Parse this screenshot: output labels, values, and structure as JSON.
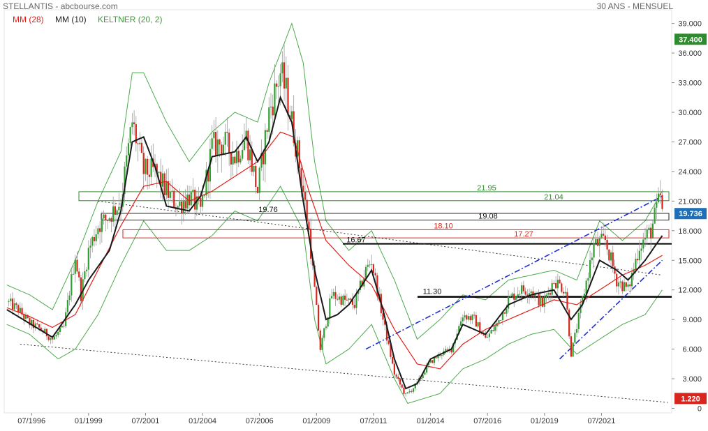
{
  "header": {
    "title": "STELLANTIS - abcbourse.com",
    "period": "30 ANS - MENSUEL"
  },
  "indicators": [
    {
      "label": "MM (28)",
      "color": "#e0201a"
    },
    {
      "label": "MM (10)",
      "color": "#222222"
    },
    {
      "label": "KELTNER (20, 2)",
      "color": "#3a9a3a"
    }
  ],
  "chart_data": {
    "type": "candlestick",
    "title": "STELLANTIS - abcbourse.com",
    "subtitle": "30 ANS - MENSUEL",
    "x_ticks": [
      "07/1996",
      "01/1999",
      "07/2001",
      "01/2004",
      "07/2006",
      "01/2009",
      "07/2011",
      "01/2014",
      "07/2016",
      "01/2019",
      "07/2021"
    ],
    "y_ticks": [
      "0",
      "3.000",
      "6.000",
      "9.000",
      "12.000",
      "15.000",
      "18.000",
      "21.000",
      "24.000",
      "27.000",
      "30.000",
      "33.000",
      "36.000",
      "39.000"
    ],
    "ylim": [
      0,
      41
    ],
    "price_label": {
      "value": "19.736",
      "color": "#1e6fb8"
    },
    "max_label": {
      "value": "37.400",
      "color": "#2e8b2e"
    },
    "min_label": {
      "value": "1.220",
      "color": "#d7261e"
    },
    "close_series": [
      [
        "1995-06",
        10.8
      ],
      [
        "1995-12",
        10.0
      ],
      [
        "1996-06",
        8.6
      ],
      [
        "1996-12",
        8.0
      ],
      [
        "1997-06",
        7.0
      ],
      [
        "1997-12",
        8.2
      ],
      [
        "1998-06",
        15.5
      ],
      [
        "1998-09",
        11.5
      ],
      [
        "1999-01",
        16.0
      ],
      [
        "1999-06",
        18.5
      ],
      [
        "1999-12",
        19.5
      ],
      [
        "2000-06",
        21.0
      ],
      [
        "2000-12",
        29.0
      ],
      [
        "2001-06",
        24.0
      ],
      [
        "2001-12",
        24.0
      ],
      [
        "2002-06",
        22.0
      ],
      [
        "2002-12",
        20.5
      ],
      [
        "2003-06",
        21.5
      ],
      [
        "2003-12",
        20.0
      ],
      [
        "2004-06",
        26.5
      ],
      [
        "2004-12",
        27.0
      ],
      [
        "2005-06",
        25.5
      ],
      [
        "2005-12",
        27.5
      ],
      [
        "2006-06",
        22.0
      ],
      [
        "2006-12",
        30.0
      ],
      [
        "2007-06",
        34.0
      ],
      [
        "2007-09",
        32.0
      ],
      [
        "2008-03",
        26.0
      ],
      [
        "2008-09",
        18.0
      ],
      [
        "2008-12",
        12.0
      ],
      [
        "2009-03",
        6.0
      ],
      [
        "2009-09",
        11.5
      ],
      [
        "2010-03",
        11.0
      ],
      [
        "2010-09",
        10.5
      ],
      [
        "2011-03",
        14.0
      ],
      [
        "2011-06",
        15.0
      ],
      [
        "2011-12",
        9.0
      ],
      [
        "2012-06",
        3.5
      ],
      [
        "2012-12",
        1.3
      ],
      [
        "2013-06",
        2.5
      ],
      [
        "2013-12",
        4.5
      ],
      [
        "2014-06",
        5.5
      ],
      [
        "2014-12",
        6.0
      ],
      [
        "2015-06",
        9.5
      ],
      [
        "2015-12",
        9.0
      ],
      [
        "2016-06",
        7.0
      ],
      [
        "2016-12",
        8.5
      ],
      [
        "2017-06",
        11.0
      ],
      [
        "2017-12",
        12.0
      ],
      [
        "2018-06",
        12.0
      ],
      [
        "2018-12",
        10.5
      ],
      [
        "2019-06",
        13.0
      ],
      [
        "2019-12",
        12.0
      ],
      [
        "2020-03",
        5.5
      ],
      [
        "2020-09",
        11.0
      ],
      [
        "2021-03",
        16.5
      ],
      [
        "2021-09",
        17.0
      ],
      [
        "2022-03",
        13.0
      ],
      [
        "2022-09",
        12.0
      ],
      [
        "2023-03",
        16.5
      ],
      [
        "2023-09",
        18.0
      ],
      [
        "2024-02",
        21.5
      ],
      [
        "2024-03",
        19.736
      ]
    ],
    "mm10_series": [
      [
        "1995-06",
        10.0
      ],
      [
        "1996-06",
        8.6
      ],
      [
        "1997-06",
        7.2
      ],
      [
        "1998-06",
        10.5
      ],
      [
        "1999-01",
        13.0
      ],
      [
        "1999-12",
        16.0
      ],
      [
        "2000-06",
        20.0
      ],
      [
        "2000-12",
        27.0
      ],
      [
        "2001-06",
        27.5
      ],
      [
        "2001-12",
        24.5
      ],
      [
        "2002-06",
        20.5
      ],
      [
        "2003-06",
        20.0
      ],
      [
        "2003-12",
        21.5
      ],
      [
        "2004-06",
        25.5
      ],
      [
        "2005-06",
        26.0
      ],
      [
        "2005-12",
        27.5
      ],
      [
        "2006-06",
        25.0
      ],
      [
        "2006-12",
        27.0
      ],
      [
        "2007-06",
        31.5
      ],
      [
        "2007-12",
        29.0
      ],
      [
        "2008-06",
        21.0
      ],
      [
        "2008-12",
        14.0
      ],
      [
        "2009-06",
        9.0
      ],
      [
        "2009-12",
        9.5
      ],
      [
        "2010-06",
        10.5
      ],
      [
        "2011-01",
        12.5
      ],
      [
        "2011-06",
        14.0
      ],
      [
        "2011-12",
        10.0
      ],
      [
        "2012-06",
        5.0
      ],
      [
        "2012-12",
        2.0
      ],
      [
        "2013-06",
        2.5
      ],
      [
        "2014-01",
        5.0
      ],
      [
        "2014-12",
        6.0
      ],
      [
        "2015-06",
        8.5
      ],
      [
        "2016-06",
        7.5
      ],
      [
        "2017-06",
        10.5
      ],
      [
        "2018-06",
        11.5
      ],
      [
        "2019-06",
        12.0
      ],
      [
        "2020-03",
        9.0
      ],
      [
        "2020-09",
        10.5
      ],
      [
        "2021-06",
        15.0
      ],
      [
        "2022-03",
        14.0
      ],
      [
        "2022-09",
        13.0
      ],
      [
        "2023-06",
        15.0
      ],
      [
        "2024-03",
        17.5
      ]
    ],
    "mm28_series": [
      [
        "1995-06",
        10.2
      ],
      [
        "1996-06",
        9.3
      ],
      [
        "1997-06",
        8.2
      ],
      [
        "1998-06",
        9.5
      ],
      [
        "1999-06",
        14.0
      ],
      [
        "2000-06",
        18.5
      ],
      [
        "2001-06",
        22.5
      ],
      [
        "2002-06",
        23.0
      ],
      [
        "2003-06",
        21.0
      ],
      [
        "2004-06",
        22.0
      ],
      [
        "2005-06",
        23.5
      ],
      [
        "2006-06",
        25.0
      ],
      [
        "2007-06",
        28.0
      ],
      [
        "2008-01",
        27.5
      ],
      [
        "2008-09",
        22.0
      ],
      [
        "2009-06",
        17.0
      ],
      [
        "2010-06",
        14.5
      ],
      [
        "2011-06",
        12.5
      ],
      [
        "2012-06",
        8.0
      ],
      [
        "2013-06",
        4.5
      ],
      [
        "2014-06",
        4.0
      ],
      [
        "2015-06",
        6.5
      ],
      [
        "2016-06",
        8.0
      ],
      [
        "2017-06",
        9.0
      ],
      [
        "2018-06",
        10.0
      ],
      [
        "2019-06",
        11.0
      ],
      [
        "2020-06",
        10.5
      ],
      [
        "2021-06",
        12.0
      ],
      [
        "2022-06",
        13.5
      ],
      [
        "2023-06",
        14.5
      ],
      [
        "2024-03",
        15.5
      ]
    ],
    "keltner_upper": [
      [
        "1995-06",
        12.5
      ],
      [
        "1996-06",
        11.5
      ],
      [
        "1997-06",
        10.0
      ],
      [
        "1998-06",
        15.0
      ],
      [
        "1999-06",
        21.0
      ],
      [
        "2000-06",
        26.0
      ],
      [
        "2000-12",
        34.0
      ],
      [
        "2001-06",
        34.0
      ],
      [
        "2002-06",
        29.0
      ],
      [
        "2003-06",
        25.0
      ],
      [
        "2004-06",
        28.0
      ],
      [
        "2005-06",
        30.0
      ],
      [
        "2006-06",
        29.0
      ],
      [
        "2006-12",
        33.0
      ],
      [
        "2007-06",
        36.0
      ],
      [
        "2007-12",
        39.0
      ],
      [
        "2008-06",
        35.0
      ],
      [
        "2008-12",
        25.0
      ],
      [
        "2009-06",
        19.0
      ],
      [
        "2010-06",
        16.0
      ],
      [
        "2011-06",
        18.0
      ],
      [
        "2012-06",
        13.0
      ],
      [
        "2013-06",
        7.0
      ],
      [
        "2014-06",
        9.0
      ],
      [
        "2015-06",
        11.5
      ],
      [
        "2016-06",
        11.0
      ],
      [
        "2017-06",
        13.0
      ],
      [
        "2018-06",
        13.5
      ],
      [
        "2019-06",
        14.0
      ],
      [
        "2020-06",
        13.0
      ],
      [
        "2021-06",
        19.0
      ],
      [
        "2022-06",
        17.0
      ],
      [
        "2023-06",
        19.0
      ],
      [
        "2024-03",
        22.0
      ]
    ],
    "keltner_lower": [
      [
        "1995-06",
        8.5
      ],
      [
        "1996-06",
        7.5
      ],
      [
        "1997-06",
        5.5
      ],
      [
        "1997-09",
        5.0
      ],
      [
        "1998-06",
        6.0
      ],
      [
        "1999-06",
        9.5
      ],
      [
        "2000-06",
        14.5
      ],
      [
        "2001-06",
        19.0
      ],
      [
        "2002-06",
        16.0
      ],
      [
        "2003-06",
        16.0
      ],
      [
        "2004-06",
        17.5
      ],
      [
        "2005-06",
        20.0
      ],
      [
        "2006-06",
        19.0
      ],
      [
        "2007-06",
        22.5
      ],
      [
        "2008-06",
        18.0
      ],
      [
        "2008-12",
        9.0
      ],
      [
        "2009-06",
        4.5
      ],
      [
        "2010-06",
        6.0
      ],
      [
        "2011-06",
        8.5
      ],
      [
        "2012-06",
        3.0
      ],
      [
        "2013-01",
        0.5
      ],
      [
        "2014-06",
        1.5
      ],
      [
        "2015-06",
        4.0
      ],
      [
        "2016-06",
        5.0
      ],
      [
        "2017-06",
        6.5
      ],
      [
        "2018-06",
        7.5
      ],
      [
        "2019-06",
        8.0
      ],
      [
        "2020-06",
        5.5
      ],
      [
        "2021-06",
        7.0
      ],
      [
        "2022-06",
        8.5
      ],
      [
        "2023-06",
        9.5
      ],
      [
        "2024-03",
        12.0
      ]
    ],
    "levels": [
      {
        "label": "21.95",
        "value": 21.95,
        "kind": "zone_top",
        "color": "#2e8b2e"
      },
      {
        "label": "21.04",
        "value": 21.04,
        "kind": "zone_bottom",
        "color": "#2e8b2e"
      },
      {
        "label": "19.76",
        "value": 19.76,
        "kind": "zone_top",
        "color": "#222222"
      },
      {
        "label": "19.08",
        "value": 19.08,
        "kind": "zone_bottom",
        "color": "#222222"
      },
      {
        "label": "18.10",
        "value": 18.1,
        "kind": "zone_top",
        "color": "#d7261e"
      },
      {
        "label": "17.27",
        "value": 17.27,
        "kind": "zone_bottom",
        "color": "#d7261e"
      },
      {
        "label": "16.67",
        "value": 16.67,
        "kind": "line",
        "color": "#000000"
      },
      {
        "label": "11.30",
        "value": 11.3,
        "kind": "line",
        "color": "#000000"
      }
    ],
    "trendlines": [
      {
        "from": [
          "1996-01",
          6.5
        ],
        "to": [
          "2024-06",
          0.6
        ],
        "style": "dotted",
        "color": "#333333"
      },
      {
        "from": [
          "1999-06",
          21.0
        ],
        "to": [
          "2024-03",
          13.5
        ],
        "style": "dotted",
        "color": "#333333"
      },
      {
        "from": [
          "2011-03",
          6.0
        ],
        "to": [
          "2024-03",
          21.5
        ],
        "style": "dashdot",
        "color": "#1f2fd0"
      },
      {
        "from": [
          "2019-09",
          5.0
        ],
        "to": [
          "2024-03",
          15.0
        ],
        "style": "dashdot",
        "color": "#1f2fd0"
      }
    ]
  }
}
